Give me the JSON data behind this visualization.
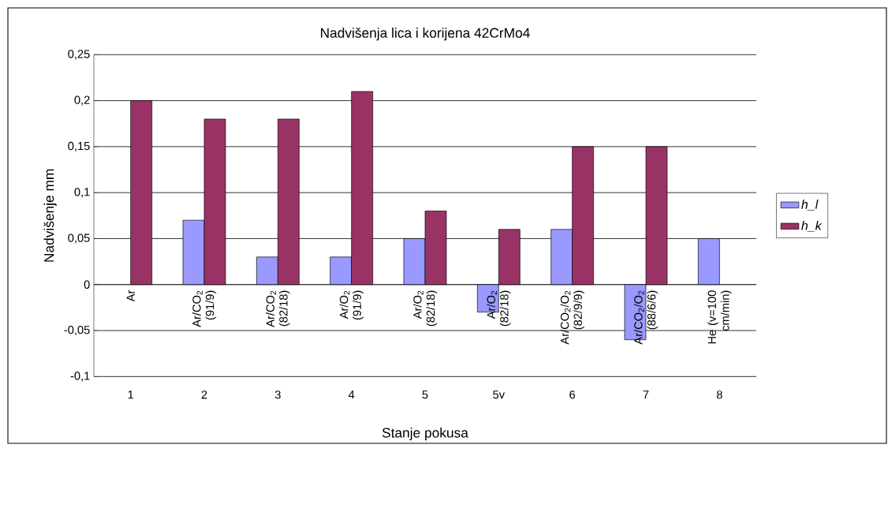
{
  "chart_data": {
    "type": "bar",
    "title": "Nadvišenja lica i korijena 42CrMo4",
    "xlabel": "Stanje pokusa",
    "ylabel": "Nadvišenje mm",
    "categories": [
      "1",
      "2",
      "3",
      "4",
      "5",
      "5v",
      "6",
      "7",
      "8"
    ],
    "series": [
      {
        "name": "h_l",
        "color": "#9999ff",
        "values": [
          null,
          0.07,
          0.03,
          0.03,
          0.05,
          -0.03,
          0.06,
          -0.06,
          0.05
        ]
      },
      {
        "name": "h_k",
        "color": "#993366",
        "values": [
          0.2,
          0.18,
          0.18,
          0.21,
          0.08,
          0.06,
          0.15,
          0.15,
          null
        ]
      }
    ],
    "ylim": [
      -0.1,
      0.25
    ],
    "yticks": [
      {
        "value": -0.1,
        "label": "-0,1"
      },
      {
        "value": -0.05,
        "label": "-0,05"
      },
      {
        "value": 0,
        "label": "0"
      },
      {
        "value": 0.05,
        "label": "0,05"
      },
      {
        "value": 0.1,
        "label": "0,1"
      },
      {
        "value": 0.15,
        "label": "0,15"
      },
      {
        "value": 0.2,
        "label": "0,2"
      },
      {
        "value": 0.25,
        "label": "0,25"
      }
    ],
    "grid": "y",
    "legend": "right",
    "annotations": [
      "Ar",
      "Ar/CO$_{2}$ (91/9)",
      "Ar/CO$_{2}$ (82/18)",
      "Ar/O$_{2}$ (91/9)",
      "Ar/O$_{2}$ (82/18)",
      "Ar/O$_{2}$ (82/18)",
      "Ar/CO$_{2}$/O$_{2}$ (82/9/9)",
      "Ar/CO$_{2}$/O$_{2}$ (88/6/6)",
      "He (v=100 cm/min)"
    ]
  }
}
